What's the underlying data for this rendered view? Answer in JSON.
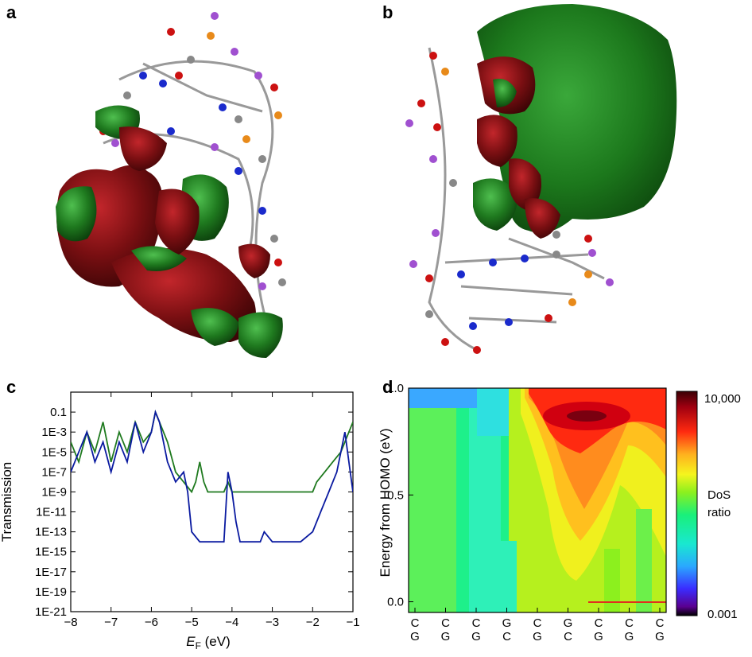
{
  "panels": {
    "a": "a",
    "b": "b",
    "c": "c",
    "d": "d"
  },
  "colors": {
    "green_series": "#1f7a1f",
    "blue_series": "#0a1aa0",
    "orbital_red": "#7a0f12",
    "orbital_green": "#1f7a1f"
  },
  "chart_data": [
    {
      "panel": "c",
      "type": "line",
      "xlabel_main": "E",
      "xlabel_sub": "F",
      "xlabel_unit": " (eV)",
      "ylabel": "Transmission",
      "xlim": [
        -8,
        -1
      ],
      "ylim_log10": [
        -21,
        1
      ],
      "y_scale": "log",
      "x_ticks": [
        -8,
        -7,
        -6,
        -5,
        -4,
        -3,
        -2,
        -1
      ],
      "x_tick_labels": [
        "−8",
        "−7",
        "−6",
        "−5",
        "−4",
        "−3",
        "−2",
        "−1"
      ],
      "y_ticks_log10": [
        -1,
        -3,
        -5,
        -7,
        -9,
        -11,
        -13,
        -15,
        -17,
        -19,
        -21
      ],
      "y_tick_labels": [
        "0.1",
        "1E-3",
        "1E-5",
        "1E-7",
        "1E-9",
        "1E-11",
        "1E-13",
        "1E-15",
        "1E-17",
        "1E-19",
        "1E-21"
      ],
      "series": [
        {
          "color": "green",
          "x": [
            -8.0,
            -7.8,
            -7.6,
            -7.4,
            -7.2,
            -7.0,
            -6.8,
            -6.6,
            -6.4,
            -6.2,
            -6.0,
            -5.9,
            -5.8,
            -5.6,
            -5.4,
            -5.2,
            -5.0,
            -4.9,
            -4.8,
            -4.7,
            -4.6,
            -4.4,
            -4.2,
            -4.1,
            -4.0,
            -3.8,
            -3.5,
            -3.0,
            -2.5,
            -2.2,
            -2.0,
            -1.9,
            -1.7,
            -1.5,
            -1.3,
            -1.2,
            -1.1,
            -1.0
          ],
          "y": [
            0.0001,
            1e-06,
            0.001,
            1e-05,
            0.01,
            1e-06,
            0.001,
            1e-05,
            0.01,
            0.0001,
            0.001,
            0.1,
            0.01,
            0.0001,
            1e-07,
            1e-08,
            1e-09,
            1e-08,
            1e-06,
            1e-08,
            1e-09,
            1e-09,
            1e-09,
            1e-08,
            1e-09,
            1e-09,
            1e-09,
            1e-09,
            1e-09,
            1e-09,
            1e-09,
            1e-08,
            1e-07,
            1e-06,
            1e-05,
            0.0001,
            0.001,
            0.01
          ]
        },
        {
          "color": "blue",
          "x": [
            -8.0,
            -7.8,
            -7.6,
            -7.4,
            -7.2,
            -7.0,
            -6.8,
            -6.6,
            -6.4,
            -6.2,
            -6.0,
            -5.9,
            -5.8,
            -5.6,
            -5.4,
            -5.2,
            -5.1,
            -5.0,
            -4.8,
            -4.5,
            -4.2,
            -4.1,
            -4.0,
            -3.9,
            -3.8,
            -3.6,
            -3.3,
            -3.2,
            -3.0,
            -2.6,
            -2.3,
            -2.0,
            -1.8,
            -1.6,
            -1.4,
            -1.3,
            -1.2,
            -1.1,
            -1.0
          ],
          "y": [
            1e-07,
            1e-05,
            0.001,
            1e-06,
            0.0001,
            1e-07,
            0.0001,
            1e-06,
            0.01,
            1e-05,
            0.001,
            0.1,
            0.01,
            1e-06,
            1e-08,
            1e-07,
            1e-09,
            1e-13,
            1e-14,
            1e-14,
            1e-14,
            1e-07,
            1e-09,
            1e-12,
            1e-14,
            1e-14,
            1e-14,
            1e-13,
            1e-14,
            1e-14,
            1e-14,
            1e-13,
            1e-11,
            1e-09,
            1e-07,
            1e-05,
            0.001,
            1e-06,
            1e-09
          ]
        }
      ]
    },
    {
      "panel": "d",
      "type": "heatmap",
      "ylabel": "Energy from HOMO (eV)",
      "ylim": [
        -0.05,
        1.0
      ],
      "y_ticks": [
        0.0,
        0.5,
        1.0
      ],
      "y_tick_labels": [
        "0.0",
        "0.5",
        "1.0"
      ],
      "x_tick_labels_top": [
        "C",
        "C",
        "C",
        "G",
        "C",
        "G",
        "C",
        "C",
        "C"
      ],
      "x_tick_labels_bottom": [
        "G",
        "G",
        "G",
        "C",
        "G",
        "C",
        "G",
        "G",
        "G"
      ],
      "colorbar": {
        "label_line1": "DoS",
        "label_line2": "ratio",
        "max_label": "10,000",
        "min_label": "0.001",
        "scale": "log"
      }
    }
  ]
}
